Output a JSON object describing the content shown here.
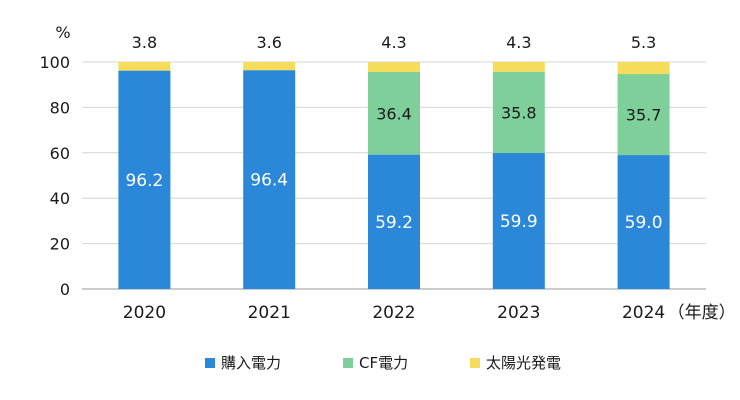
{
  "chart_data": {
    "type": "bar",
    "stacked": true,
    "unit_label": "%",
    "x_unit": "（年度）",
    "categories": [
      "2020",
      "2021",
      "2022",
      "2023",
      "2024"
    ],
    "ylim": [
      0,
      100
    ],
    "yticks": [
      0,
      20,
      40,
      60,
      80,
      100
    ],
    "grid": true,
    "legend_position": "bottom",
    "series": [
      {
        "name": "購入電力",
        "color": "#2b87d8",
        "values": [
          96.2,
          96.4,
          59.2,
          59.9,
          59.0
        ],
        "labels": [
          "96.2",
          "96.4",
          "59.2",
          "59.9",
          "59.0"
        ]
      },
      {
        "name": "CF電力",
        "color": "#7fcf9a",
        "values": [
          0,
          0,
          36.4,
          35.8,
          35.7
        ],
        "labels": [
          "",
          "",
          "36.4",
          "35.8",
          "35.7"
        ]
      },
      {
        "name": "太陽光発電",
        "color": "#f6dc5b",
        "values": [
          3.8,
          3.6,
          4.3,
          4.3,
          5.3
        ],
        "labels": [
          "3.8",
          "3.6",
          "4.3",
          "4.3",
          "5.3"
        ]
      }
    ]
  }
}
